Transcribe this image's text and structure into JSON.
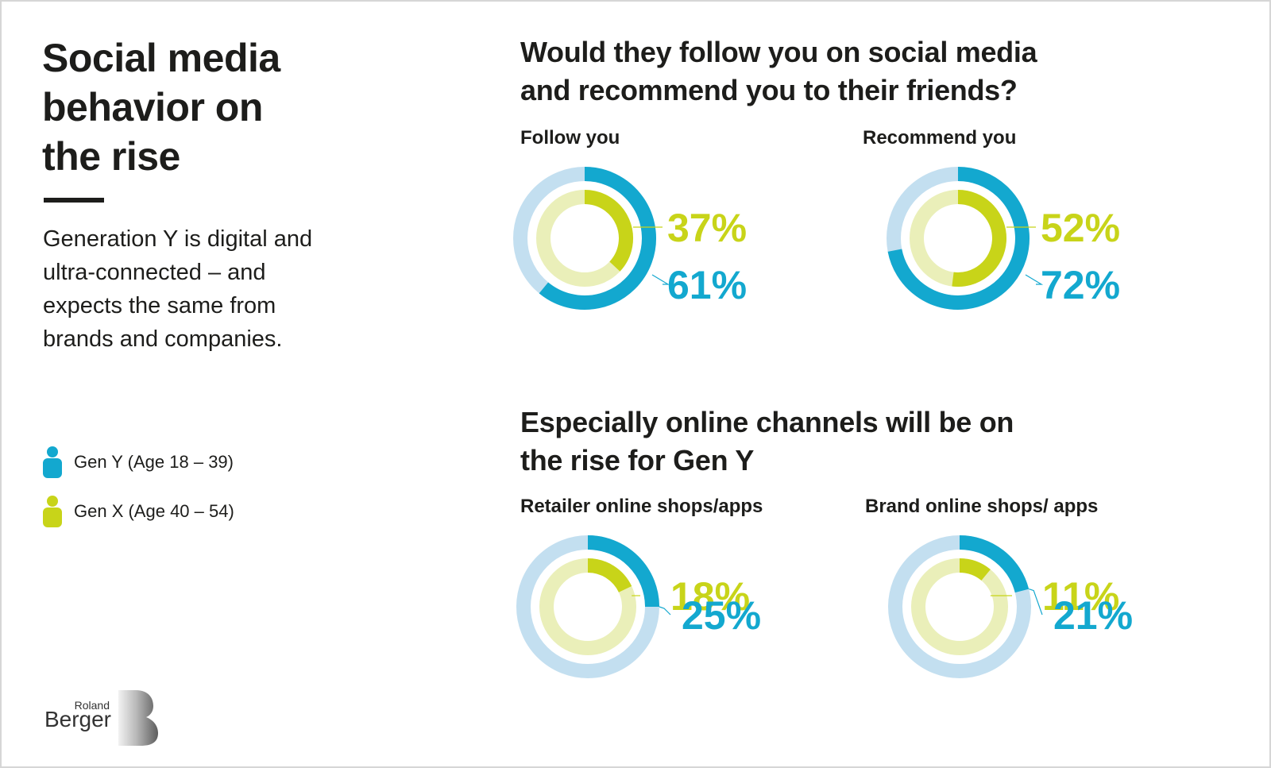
{
  "title_lines": [
    "Social media",
    "behavior on",
    "the rise"
  ],
  "intro_lines": [
    "Generation Y is digital and",
    "ultra-connected – and",
    "expects the same from",
    "brands and companies."
  ],
  "legend": [
    {
      "label": "Gen Y (Age 18 – 39)",
      "color": "#13a8cf"
    },
    {
      "label": "Gen X (Age 40 – 54)",
      "color": "#c8d419"
    }
  ],
  "sections": [
    {
      "title_lines": [
        "Would they follow you on social media",
        "and recommend you to their friends?"
      ]
    },
    {
      "title_lines": [
        "Especially online channels will be on",
        "the rise for Gen Y"
      ]
    }
  ],
  "colors": {
    "gen_y": "#13a8cf",
    "gen_y_track": "#c3dff0",
    "gen_x": "#c8d419",
    "gen_x_track": "#eaefb9"
  },
  "chart_data": [
    {
      "type": "donut",
      "title": "Follow you",
      "series": [
        {
          "name": "Gen Y (Age 18 – 39)",
          "value": 61,
          "label": "61%"
        },
        {
          "name": "Gen X (Age 40 – 54)",
          "value": 37,
          "label": "37%"
        }
      ]
    },
    {
      "type": "donut",
      "title": "Recommend you",
      "series": [
        {
          "name": "Gen Y (Age 18 – 39)",
          "value": 72,
          "label": "72%"
        },
        {
          "name": "Gen X (Age 40 – 54)",
          "value": 52,
          "label": "52%"
        }
      ]
    },
    {
      "type": "donut",
      "title": "Retailer online shops/apps",
      "series": [
        {
          "name": "Gen Y (Age 18 – 39)",
          "value": 25,
          "label": "25%"
        },
        {
          "name": "Gen X (Age 40 – 54)",
          "value": 18,
          "label": "18%"
        }
      ]
    },
    {
      "type": "donut",
      "title": "Brand online shops/ apps",
      "series": [
        {
          "name": "Gen Y (Age 18 – 39)",
          "value": 21,
          "label": "21%"
        },
        {
          "name": "Gen X (Age 40 – 54)",
          "value": 11,
          "label": "11%"
        }
      ]
    }
  ],
  "logo": {
    "top": "Roland",
    "bottom": "Berger"
  }
}
